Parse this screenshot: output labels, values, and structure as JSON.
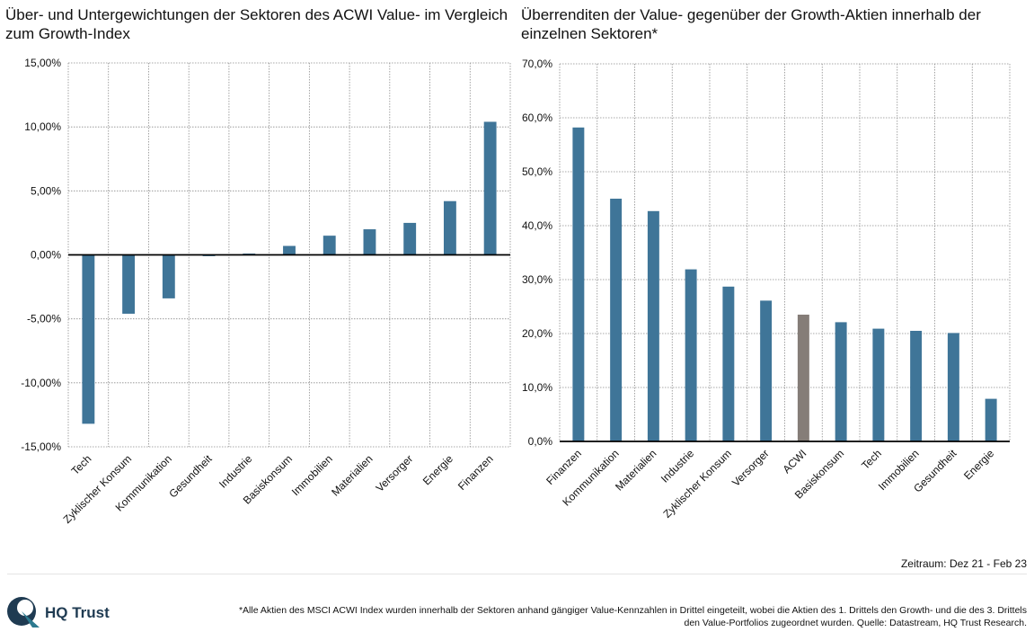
{
  "colors": {
    "bar": "#3f7598",
    "highlight": "#857d78",
    "grid": "#8c8c8c",
    "zero_line": "#000000",
    "logo_dark": "#1f3b52",
    "logo_teal": "#2d7a8f"
  },
  "chart_data": [
    {
      "type": "bar",
      "title": "Über- und Untergewichtungen der Sektoren des ACWI Value- im Vergleich zum Growth-Index",
      "categories": [
        "Tech",
        "Zyklischer Konsum",
        "Kommunikation",
        "Gesundheit",
        "Industrie",
        "Basiskonsum",
        "Immobilien",
        "Materialien",
        "Versorger",
        "Energie",
        "Finanzen"
      ],
      "values": [
        -13.2,
        -4.6,
        -3.4,
        -0.1,
        0.1,
        0.7,
        1.5,
        2.0,
        2.5,
        4.2,
        10.4
      ],
      "ylim": [
        -15,
        15
      ],
      "yticks": [
        "15,00%",
        "10,00%",
        "5,00%",
        "0,00%",
        "-5,00%",
        "-10,00%",
        "-15,00%"
      ],
      "ytick_values": [
        15,
        10,
        5,
        0,
        -5,
        -10,
        -15
      ],
      "grid": true
    },
    {
      "type": "bar",
      "title": "Überrenditen der Value- gegenüber der Growth-Aktien innerhalb der einzelnen Sektoren*",
      "categories": [
        "Finanzen",
        "Kommunikation",
        "Materialien",
        "Industrie",
        "Zyklischer Konsum",
        "Versorger",
        "ACWI",
        "Basiskonsum",
        "Tech",
        "Immobilien",
        "Gesundheit",
        "Energie"
      ],
      "values": [
        58.2,
        45.0,
        42.7,
        31.9,
        28.7,
        26.1,
        23.5,
        22.1,
        20.9,
        20.5,
        20.1,
        7.9
      ],
      "highlight": "ACWI",
      "ylim": [
        0,
        70
      ],
      "yticks": [
        "70,0%",
        "60,0%",
        "50,0%",
        "40,0%",
        "30,0%",
        "20,0%",
        "10,0%",
        "0,0%"
      ],
      "ytick_values": [
        70,
        60,
        50,
        40,
        30,
        20,
        10,
        0
      ],
      "grid": true
    }
  ],
  "period": "Zeitraum: Dez 21 - Feb 23",
  "logo": {
    "text": "HQ Trust"
  },
  "footnote": "*Alle Aktien des MSCI ACWI Index wurden innerhalb der Sektoren anhand gängiger Value-Kennzahlen in Drittel eingeteilt, wobei die Aktien des 1. Drittels den Growth- und die des 3. Drittels den Value-Portfolios zugeordnet wurden. Quelle: Datastream, HQ Trust Research."
}
